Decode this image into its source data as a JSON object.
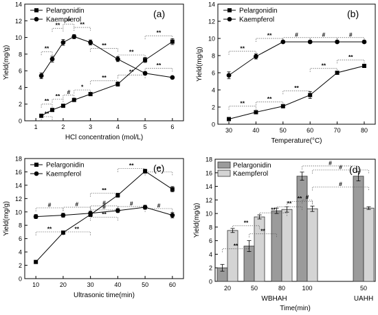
{
  "figure": {
    "label": "four-panel yield comparison"
  },
  "chart_data": [
    {
      "panel": "(a)",
      "type": "line",
      "xlabel": "HCl concentration (mol/L)",
      "ylabel": "Yield(mg/g)",
      "xlim": [
        1,
        6
      ],
      "ylim": [
        0,
        14
      ],
      "xticks": [
        1,
        2,
        3,
        4,
        5,
        6
      ],
      "yticks": [
        0,
        2,
        4,
        6,
        8,
        10,
        12,
        14
      ],
      "legend": "top-left",
      "series": [
        {
          "name": "Pelargonidin",
          "marker": "square",
          "x": [
            1.2,
            1.6,
            2.0,
            2.4,
            3.0,
            4.0,
            5.0,
            6.0
          ],
          "y": [
            0.6,
            1.3,
            1.8,
            2.5,
            3.2,
            4.4,
            7.3,
            9.5
          ],
          "err": [
            0.1,
            0.15,
            0.15,
            0.15,
            0.2,
            0.25,
            0.3,
            0.35
          ]
        },
        {
          "name": "Kaempferol",
          "marker": "circle",
          "x": [
            1.2,
            1.6,
            2.0,
            2.4,
            3.0,
            4.0,
            5.0,
            6.0
          ],
          "y": [
            5.4,
            7.4,
            9.4,
            10.1,
            9.4,
            7.4,
            5.7,
            5.2
          ],
          "err": [
            0.35,
            0.35,
            0.35,
            0.25,
            0.3,
            0.3,
            0.2,
            0.1
          ]
        }
      ],
      "annotations": [
        "**",
        "**",
        "**",
        "**",
        "**",
        "**",
        "**",
        "**",
        "**",
        "#",
        "*",
        "**",
        "**",
        "**",
        "**"
      ]
    },
    {
      "panel": "(b)",
      "type": "line",
      "xlabel": "Temperature(°C)",
      "ylabel": "Yield(mg/g)",
      "xlim": [
        30,
        80
      ],
      "ylim": [
        0,
        14
      ],
      "xticks": [
        30,
        40,
        50,
        60,
        70,
        80
      ],
      "yticks": [
        0,
        2,
        4,
        6,
        8,
        10,
        12,
        14
      ],
      "legend": "top-left",
      "series": [
        {
          "name": "Pelargonidin",
          "marker": "square",
          "x": [
            30,
            40,
            50,
            60,
            70,
            80
          ],
          "y": [
            0.6,
            1.4,
            2.1,
            3.4,
            6.0,
            6.8
          ],
          "err": [
            0.1,
            0.2,
            0.2,
            0.4,
            0.2,
            0.2
          ]
        },
        {
          "name": "Kaempferol",
          "marker": "circle",
          "x": [
            30,
            40,
            50,
            60,
            70,
            80
          ],
          "y": [
            5.7,
            7.9,
            9.6,
            9.6,
            9.6,
            9.6
          ],
          "err": [
            0.4,
            0.3,
            0.1,
            0.15,
            0.1,
            0.1
          ]
        }
      ],
      "annotations": [
        "**",
        "**",
        "#",
        "#",
        "#",
        "**",
        "**",
        "**",
        "**",
        "**"
      ]
    },
    {
      "panel": "(c)",
      "type": "line",
      "xlabel": "Ultrasonic time(min)",
      "ylabel": "Yield(mg/g)",
      "xlim": [
        10,
        60
      ],
      "ylim": [
        0,
        18
      ],
      "xticks": [
        10,
        20,
        30,
        40,
        50,
        60
      ],
      "yticks": [
        0,
        2,
        4,
        6,
        8,
        10,
        12,
        14,
        16,
        18
      ],
      "legend": "top-left",
      "series": [
        {
          "name": "Pelargonidin",
          "marker": "square",
          "x": [
            10,
            20,
            30,
            40,
            50,
            60
          ],
          "y": [
            2.5,
            6.9,
            9.6,
            12.5,
            16.1,
            13.4
          ],
          "err": [
            0.2,
            0.2,
            0.3,
            0.3,
            0.3,
            0.4
          ]
        },
        {
          "name": "Kaempferol",
          "marker": "circle",
          "x": [
            10,
            20,
            30,
            40,
            50,
            60
          ],
          "y": [
            9.3,
            9.5,
            9.8,
            10.2,
            10.7,
            9.5
          ],
          "err": [
            0.3,
            0.3,
            0.3,
            0.3,
            0.3,
            0.4
          ]
        }
      ],
      "annotations": [
        "#",
        "#",
        "#",
        "#",
        "**",
        "**",
        "**",
        "**",
        "**",
        "#",
        "#",
        "**"
      ]
    },
    {
      "panel": "(d)",
      "type": "bar",
      "xlabel": "Time(min)",
      "ylabel": "Yield(mg/g)",
      "ylim": [
        0,
        18
      ],
      "yticks": [
        0,
        2,
        4,
        6,
        8,
        10,
        12,
        14,
        16,
        18
      ],
      "legend": "top-left",
      "categories": [
        "20",
        "50",
        "80",
        "100",
        "50"
      ],
      "groups": [
        "WBHAH",
        "UAHH"
      ],
      "series": [
        {
          "name": "Pelargonidin",
          "values": [
            2.0,
            5.2,
            10.4,
            15.5,
            15.5
          ],
          "err": [
            0.5,
            0.8,
            0.4,
            0.6,
            0.7
          ]
        },
        {
          "name": "Kaempferol",
          "values": [
            7.5,
            9.5,
            10.6,
            10.7,
            10.8
          ],
          "err": [
            0.3,
            0.3,
            0.4,
            0.4,
            0.2
          ]
        }
      ],
      "annotations": [
        "**",
        "**",
        "**",
        "**",
        "**",
        "**",
        "#",
        "#",
        "#",
        "#"
      ]
    }
  ]
}
